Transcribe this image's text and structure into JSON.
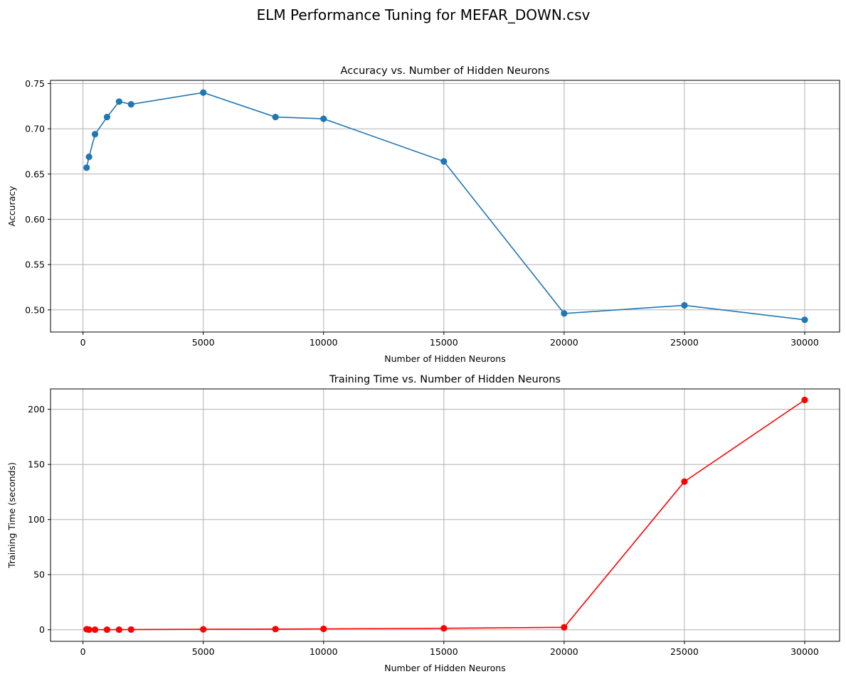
{
  "figure": {
    "suptitle": "ELM Performance Tuning for MEFAR_DOWN.csv"
  },
  "chart_data": [
    {
      "type": "line",
      "title": "Accuracy vs. Number of Hidden Neurons",
      "xlabel": "Number of Hidden Neurons",
      "ylabel": "Accuracy",
      "grid": true,
      "color": "#1f77b4",
      "xlim": [
        -1350,
        31450
      ],
      "ylim": [
        0.4755,
        0.7535
      ],
      "xticks": [
        0,
        5000,
        10000,
        15000,
        20000,
        25000,
        30000
      ],
      "xtick_labels": [
        "0",
        "5000",
        "10000",
        "15000",
        "20000",
        "25000",
        "30000"
      ],
      "yticks": [
        0.5,
        0.55,
        0.6,
        0.65,
        0.7,
        0.75
      ],
      "ytick_labels": [
        "0.50",
        "0.55",
        "0.60",
        "0.65",
        "0.70",
        "0.75"
      ],
      "x": [
        150,
        250,
        500,
        1000,
        1500,
        2000,
        5000,
        8000,
        10000,
        15000,
        20000,
        25000,
        30000
      ],
      "y": [
        0.657,
        0.669,
        0.694,
        0.713,
        0.73,
        0.727,
        0.74,
        0.713,
        0.711,
        0.664,
        0.496,
        0.505,
        0.489
      ]
    },
    {
      "type": "line",
      "title": "Training Time vs. Number of Hidden Neurons",
      "xlabel": "Number of Hidden Neurons",
      "ylabel": "Training Time (seconds)",
      "grid": true,
      "color": "#ff0000",
      "xlim": [
        -1350,
        31450
      ],
      "ylim": [
        -10.5,
        218.5
      ],
      "xticks": [
        0,
        5000,
        10000,
        15000,
        20000,
        25000,
        30000
      ],
      "xtick_labels": [
        "0",
        "5000",
        "10000",
        "15000",
        "20000",
        "25000",
        "30000"
      ],
      "yticks": [
        0,
        50,
        100,
        150,
        200
      ],
      "ytick_labels": [
        "0",
        "50",
        "100",
        "150",
        "200"
      ],
      "x": [
        150,
        250,
        500,
        1000,
        1500,
        2000,
        5000,
        8000,
        10000,
        15000,
        20000,
        25000,
        30000
      ],
      "y": [
        0.5,
        0.1,
        0.1,
        0.1,
        0.1,
        0.2,
        0.4,
        0.6,
        0.8,
        1.3,
        2.2,
        134.4,
        208.5
      ]
    }
  ]
}
